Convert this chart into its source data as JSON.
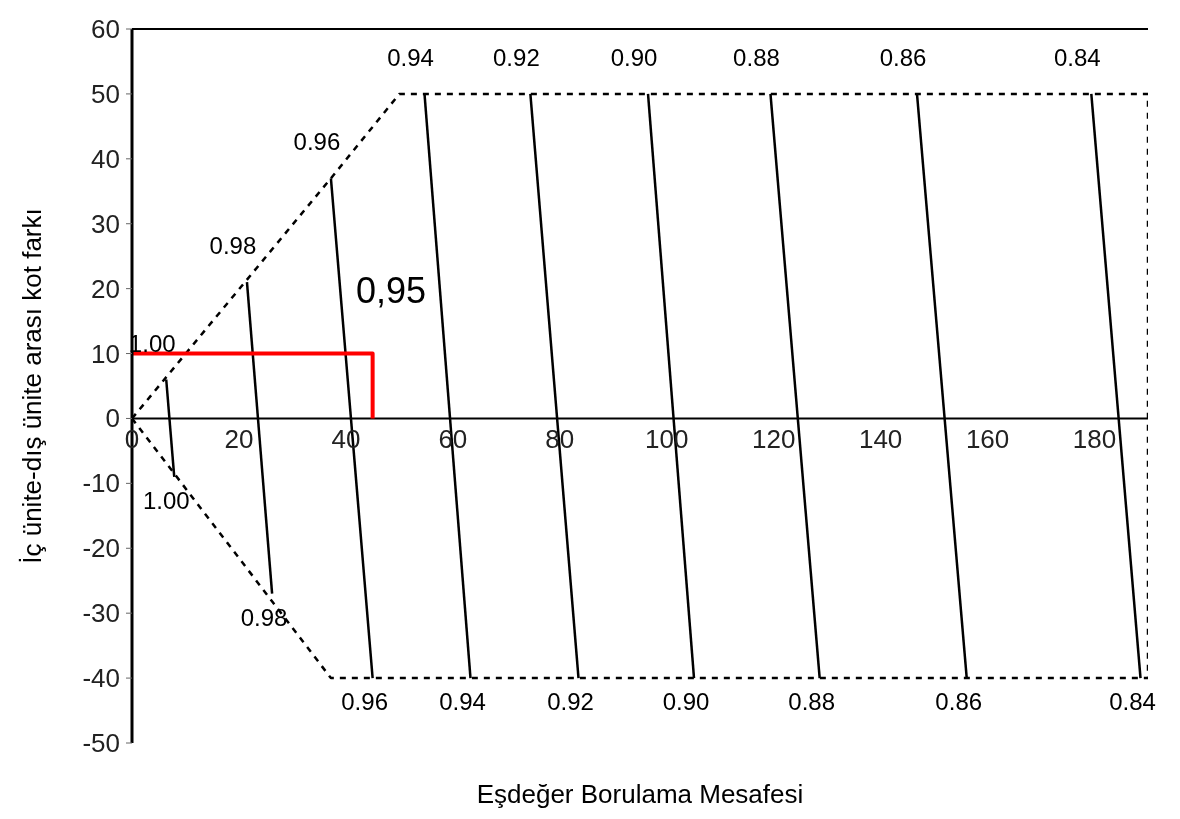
{
  "chart_data": {
    "type": "line",
    "xlabel": "Eşdeğer Borulama Mesafesi",
    "ylabel": "İç ünite-dış ünite arası kot farkı",
    "xlim": [
      0,
      190
    ],
    "ylim": [
      -50,
      60
    ],
    "xticks": [
      0,
      20,
      40,
      60,
      80,
      100,
      120,
      140,
      160,
      180
    ],
    "yticks": [
      -50,
      -40,
      -30,
      -20,
      -10,
      0,
      10,
      20,
      30,
      40,
      50,
      60
    ],
    "grid": false,
    "legend": false,
    "marker": "none",
    "line_style": "solid",
    "annotations": [
      "0,95"
    ],
    "series": [
      {
        "type": "line",
        "color": "#000000",
        "line_style": "dashed",
        "x": [
          0,
          37.2,
          50,
          190,
          190
        ],
        "values": [
          0,
          37,
          50,
          50,
          -40
        ]
      },
      {
        "type": "line",
        "color": "#000000",
        "line_style": "dashed",
        "x": [
          0,
          37.2,
          190
        ],
        "values": [
          0,
          -40,
          -40
        ]
      },
      {
        "name": "1.00",
        "color": "#000000",
        "x": [
          6.4,
          7.9
        ],
        "values": [
          6,
          -9
        ]
      },
      {
        "name": "0.98",
        "color": "#000000",
        "x": [
          21.5,
          26.2
        ],
        "values": [
          21,
          -27
        ]
      },
      {
        "name": "0.96",
        "color": "#000000",
        "x": [
          37.2,
          45
        ],
        "values": [
          37,
          -40
        ]
      },
      {
        "name": "0.94",
        "color": "#000000",
        "x": [
          54.7,
          63.3
        ],
        "values": [
          50,
          -40
        ]
      },
      {
        "name": "0.92",
        "color": "#000000",
        "x": [
          74.5,
          83.5
        ],
        "values": [
          50,
          -40
        ]
      },
      {
        "name": "0.90",
        "color": "#000000",
        "x": [
          96.5,
          105.1
        ],
        "values": [
          50,
          -40
        ]
      },
      {
        "name": "0.88",
        "color": "#000000",
        "x": [
          119.4,
          128.6
        ],
        "values": [
          50,
          -40
        ]
      },
      {
        "name": "0.86",
        "color": "#000000",
        "x": [
          146.8,
          156.1
        ],
        "values": [
          50,
          -40
        ]
      },
      {
        "name": "0.84",
        "color": "#000000",
        "x": [
          179.4,
          188.6
        ],
        "values": [
          50,
          -40
        ]
      },
      {
        "color": "#ff0000",
        "x": [
          0,
          45,
          45
        ],
        "values": [
          10,
          10,
          0
        ]
      }
    ]
  }
}
